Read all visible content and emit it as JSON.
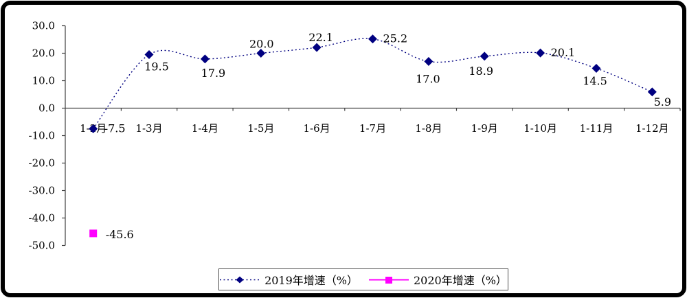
{
  "chart_data": {
    "type": "line",
    "categories": [
      "1-2月",
      "1-3月",
      "1-4月",
      "1-5月",
      "1-6月",
      "1-7月",
      "1-8月",
      "1-9月",
      "1-10月",
      "1-11月",
      "1-12月"
    ],
    "series": [
      {
        "name": "2019年增速（%）",
        "color": "#000080",
        "marker": "diamond",
        "line_style": "dotted",
        "values": [
          -7.5,
          19.5,
          17.9,
          20.0,
          22.1,
          25.2,
          17.0,
          18.9,
          20.1,
          14.5,
          5.9
        ],
        "labels": [
          "-7.5",
          "19.5",
          "17.9",
          "20.0",
          "22.1",
          "25.2",
          "17.0",
          "18.9",
          "20.1",
          "14.5",
          "5.9"
        ]
      },
      {
        "name": "2020年增速（%）",
        "color": "#FF00FF",
        "marker": "square",
        "line_style": "solid",
        "values": [
          -45.6,
          null,
          null,
          null,
          null,
          null,
          null,
          null,
          null,
          null,
          null
        ],
        "labels": [
          "-45.6",
          "",
          "",
          "",
          "",
          "",
          "",
          "",
          "",
          "",
          ""
        ]
      }
    ],
    "ylim": [
      -50,
      30
    ],
    "ytick_step": 10,
    "ytick_labels": [
      "30.0",
      "20.0",
      "10.0",
      "0.0",
      "-10.0",
      "-20.0",
      "-30.0",
      "-40.0",
      "-50.0"
    ],
    "grid": false,
    "legend_position": "bottom",
    "label_offsets": {
      "s0": [
        [
          16,
          5,
          "start"
        ],
        [
          11,
          23,
          "middle"
        ],
        [
          12,
          26,
          "middle"
        ],
        [
          1,
          -8,
          "middle"
        ],
        [
          6,
          -9,
          "middle"
        ],
        [
          15,
          5,
          "start"
        ],
        [
          -1,
          31,
          "middle"
        ],
        [
          -5,
          27,
          "middle"
        ],
        [
          15,
          5,
          "start"
        ],
        [
          -2,
          24,
          "middle"
        ],
        [
          15,
          20,
          "middle"
        ]
      ],
      "s1": [
        [
          18,
          7,
          "start"
        ]
      ]
    }
  },
  "colors": {
    "axis": "#404040",
    "text": "#000000",
    "frame": "#000000",
    "background": "#ffffff"
  }
}
